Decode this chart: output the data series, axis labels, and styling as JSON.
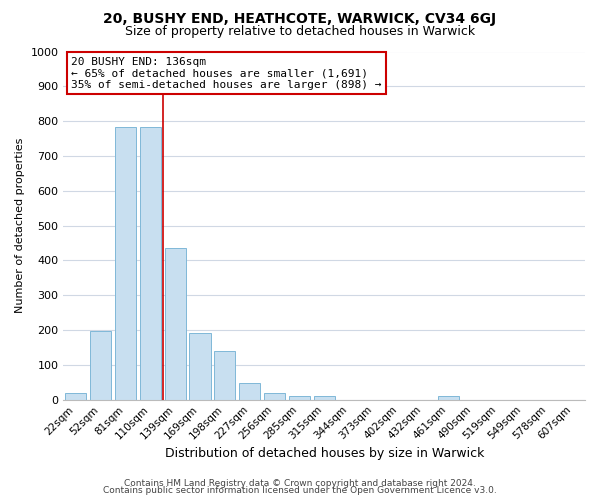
{
  "title": "20, BUSHY END, HEATHCOTE, WARWICK, CV34 6GJ",
  "subtitle": "Size of property relative to detached houses in Warwick",
  "xlabel": "Distribution of detached houses by size in Warwick",
  "ylabel": "Number of detached properties",
  "bar_labels": [
    "22sqm",
    "52sqm",
    "81sqm",
    "110sqm",
    "139sqm",
    "169sqm",
    "198sqm",
    "227sqm",
    "256sqm",
    "285sqm",
    "315sqm",
    "344sqm",
    "373sqm",
    "402sqm",
    "432sqm",
    "461sqm",
    "490sqm",
    "519sqm",
    "549sqm",
    "578sqm",
    "607sqm"
  ],
  "bar_values": [
    18,
    197,
    783,
    783,
    435,
    192,
    140,
    49,
    18,
    10,
    10,
    0,
    0,
    0,
    0,
    10,
    0,
    0,
    0,
    0,
    0
  ],
  "bar_color": "#c8dff0",
  "bar_edge_color": "#7fb8d8",
  "vline_color": "#cc0000",
  "vline_x_index": 4,
  "annotation_title": "20 BUSHY END: 136sqm",
  "annotation_line1": "← 65% of detached houses are smaller (1,691)",
  "annotation_line2": "35% of semi-detached houses are larger (898) →",
  "box_facecolor": "#ffffff",
  "box_edgecolor": "#cc0000",
  "ylim": [
    0,
    1000
  ],
  "yticks": [
    0,
    100,
    200,
    300,
    400,
    500,
    600,
    700,
    800,
    900,
    1000
  ],
  "footer1": "Contains HM Land Registry data © Crown copyright and database right 2024.",
  "footer2": "Contains public sector information licensed under the Open Government Licence v3.0.",
  "bg_color": "#ffffff",
  "grid_color": "#d0d8e4",
  "title_fontsize": 10,
  "subtitle_fontsize": 9,
  "xlabel_fontsize": 9,
  "ylabel_fontsize": 8,
  "tick_fontsize": 8,
  "annotation_fontsize": 8,
  "footer_fontsize": 6.5
}
